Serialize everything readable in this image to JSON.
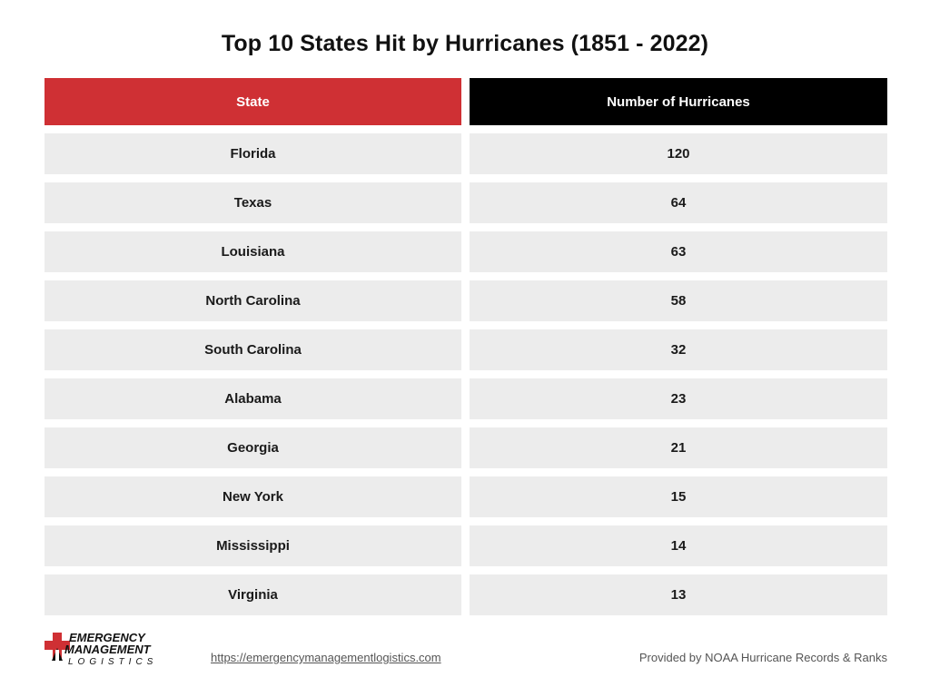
{
  "chart_data": {
    "type": "table",
    "title": "Top 10 States Hit by Hurricanes  (1851 - 2022)",
    "columns": [
      "State",
      "Number of Hurricanes"
    ],
    "categories": [
      "Florida",
      "Texas",
      "Louisiana",
      "North Carolina",
      "South Carolina",
      "Alabama",
      "Georgia",
      "New York",
      "Mississippi",
      "Virginia"
    ],
    "values": [
      "120",
      "64",
      "63",
      "58",
      "32",
      "23",
      "21",
      "15",
      "14",
      "13"
    ]
  },
  "colors": {
    "state_header": "#cf3034",
    "number_header": "#000000",
    "row_background": "#ececec"
  },
  "footer": {
    "logo": {
      "line1": "EMERGENCY",
      "line2": "MANAGEMENT",
      "line3": "LOGISTICS",
      "icon": "red-cross-icon"
    },
    "url": "https://emergencymanagementlogistics.com",
    "credit": "Provided by NOAA Hurricane Records & Ranks"
  }
}
